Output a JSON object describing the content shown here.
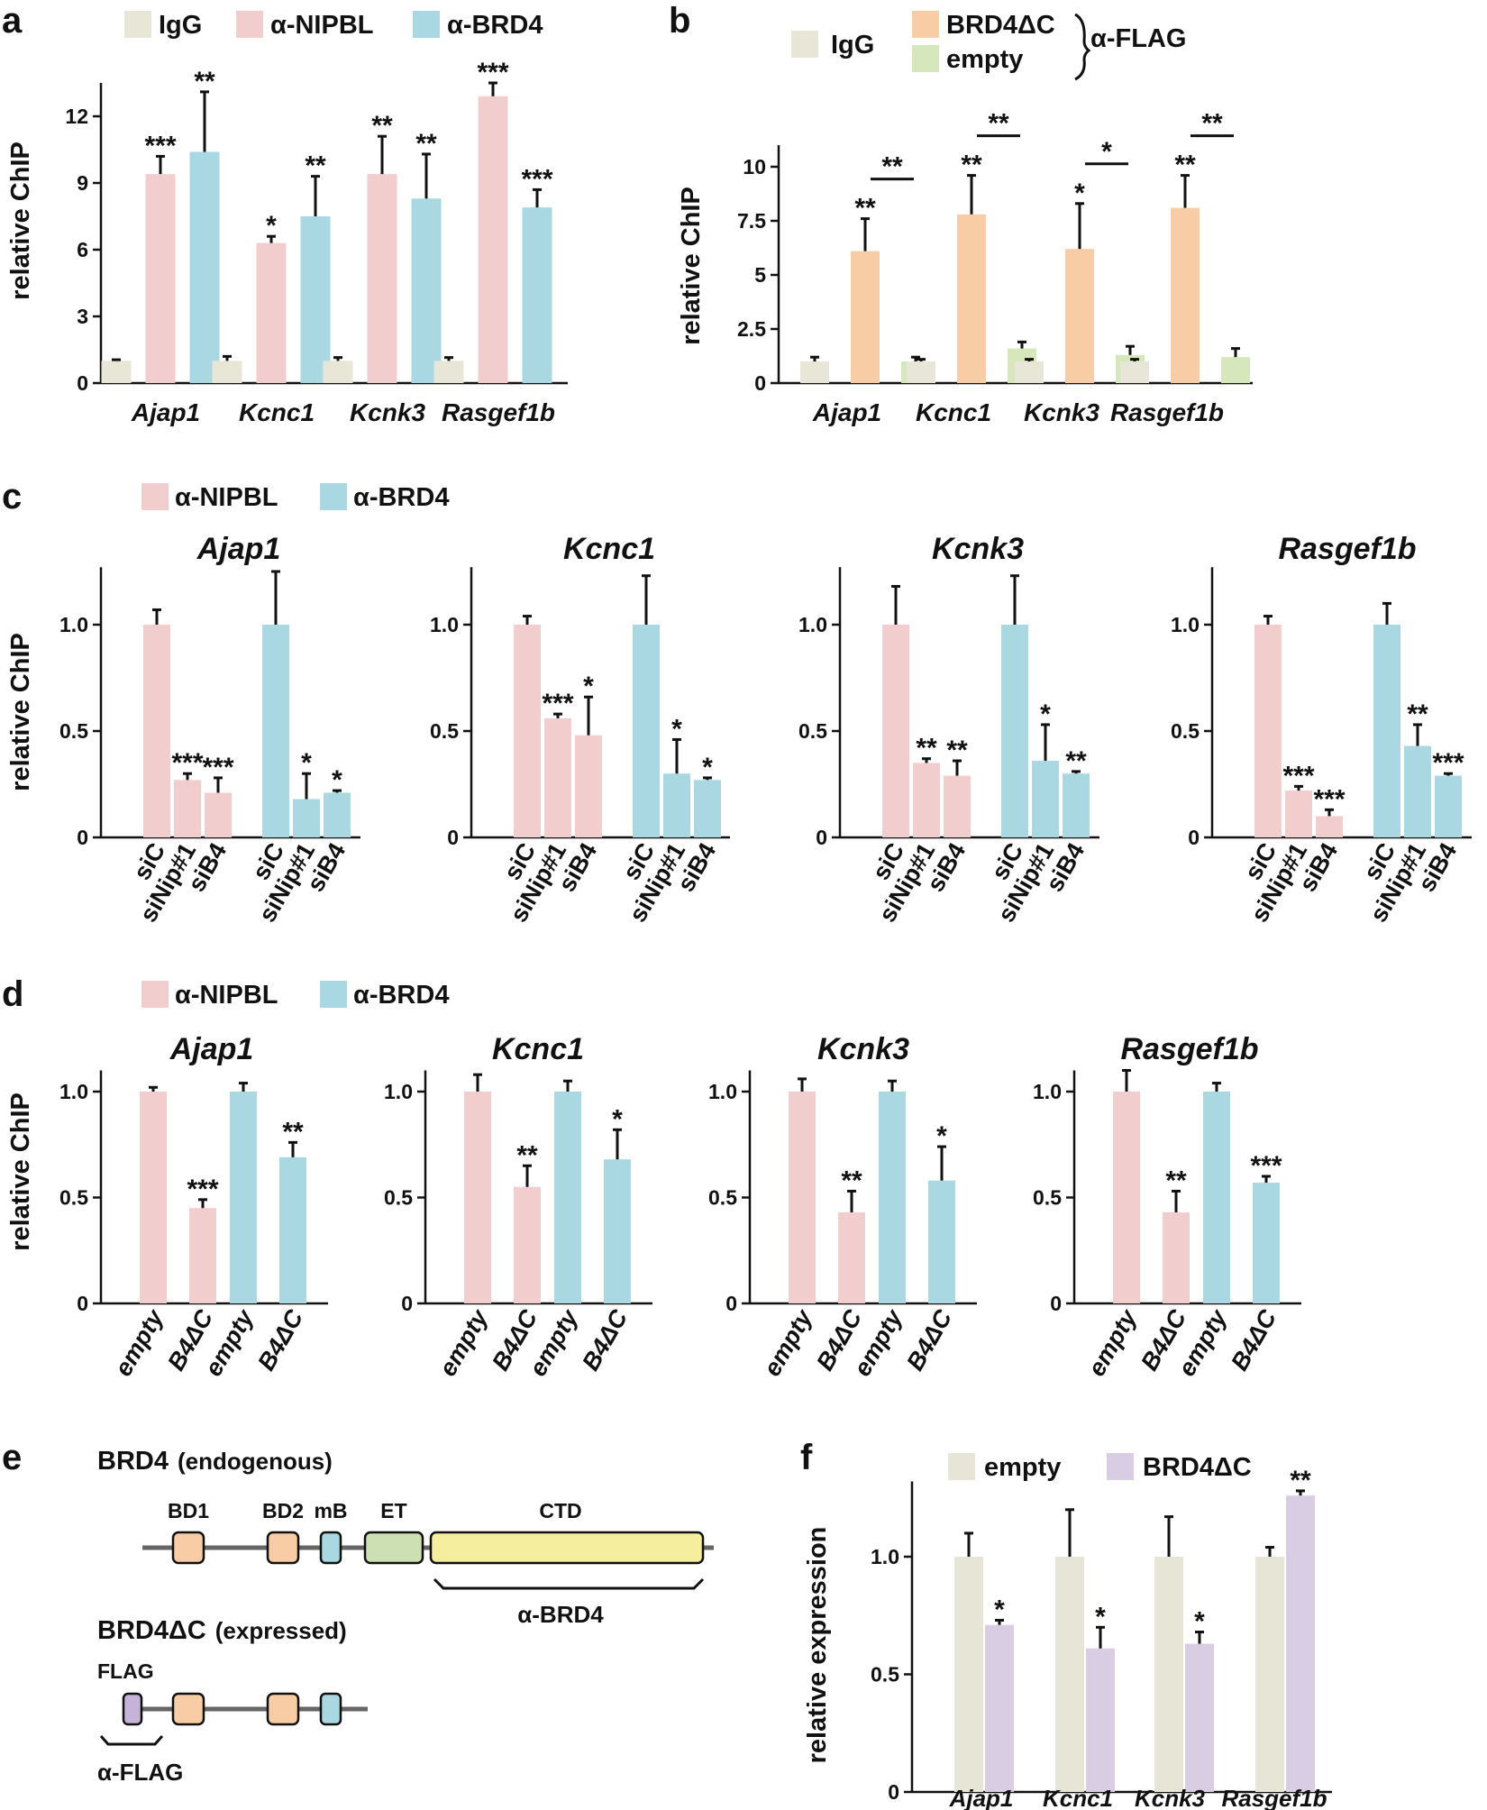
{
  "colors": {
    "igg": "#e8e6d6",
    "nipbl": "#f2cdcd",
    "brd4": "#a9d8e2",
    "brd4dc": "#f8cda6",
    "empty_b": "#d6e7bb",
    "empty_f": "#e7e5d5",
    "brd4dc_f": "#d8cde3",
    "bd": "#f8cda6",
    "mb": "#a9d8e2",
    "et": "#cce0b4",
    "ctd": "#f5ee9e",
    "flag": "#c6b3d8"
  },
  "labels": {
    "a": "a",
    "b": "b",
    "c": "c",
    "d": "d",
    "e": "e",
    "f": "f",
    "alpha_flag": "α-FLAG"
  },
  "chart_data": [
    {
      "id": "a",
      "type": "bar",
      "categories": [
        "Ajap1",
        "Kcnc1",
        "Kcnk3",
        "Rasgef1b"
      ],
      "ylabel": "relative ChIP",
      "ylim": [
        0,
        13.5
      ],
      "yticks": [
        "0",
        "3",
        "6",
        "9",
        "12"
      ],
      "legend": [
        "IgG",
        "α-NIPBL",
        "α-BRD4"
      ],
      "series": [
        {
          "name": "IgG",
          "values": [
            1.0,
            1.0,
            1.0,
            1.0
          ],
          "err": [
            0.05,
            0.2,
            0.15,
            0.15
          ],
          "stars": [
            "",
            "",
            "",
            ""
          ]
        },
        {
          "name": "α-NIPBL",
          "values": [
            9.4,
            6.3,
            9.4,
            12.9
          ],
          "err": [
            0.8,
            0.3,
            1.7,
            0.6
          ],
          "stars": [
            "***",
            "*",
            "**",
            "***"
          ]
        },
        {
          "name": "α-BRD4",
          "values": [
            10.4,
            7.5,
            8.3,
            7.9
          ],
          "err": [
            2.7,
            1.8,
            2.0,
            0.8
          ],
          "stars": [
            "**",
            "**",
            "**",
            "***"
          ]
        }
      ]
    },
    {
      "id": "b",
      "type": "bar",
      "categories": [
        "Ajap1",
        "Kcnc1",
        "Kcnk3",
        "Rasgef1b"
      ],
      "ylabel": "relative ChIP",
      "ylim": [
        0,
        11
      ],
      "yticks": [
        "0",
        "2.5",
        "5",
        "7.5",
        "10"
      ],
      "legend": [
        "IgG",
        "BRD4ΔC",
        "empty"
      ],
      "series": [
        {
          "name": "IgG",
          "values": [
            1.0,
            1.0,
            1.0,
            1.0
          ],
          "err": [
            0.2,
            0.1,
            0.1,
            0.1
          ],
          "stars": [
            "",
            "",
            "",
            ""
          ]
        },
        {
          "name": "BRD4ΔC",
          "values": [
            6.1,
            7.8,
            6.2,
            8.1
          ],
          "err": [
            1.5,
            1.8,
            2.1,
            1.5
          ],
          "stars": [
            "**",
            "**",
            "*",
            "**"
          ]
        },
        {
          "name": "empty",
          "values": [
            1.0,
            1.6,
            1.3,
            1.2
          ],
          "err": [
            0.2,
            0.3,
            0.4,
            0.4
          ],
          "stars": [
            "",
            "",
            "",
            ""
          ]
        }
      ],
      "bracket_stars": [
        "**",
        "**",
        "*",
        "**"
      ]
    },
    {
      "id": "c",
      "type": "bar",
      "ylabel": "relative ChIP",
      "ylim": [
        0,
        1.27
      ],
      "yticks": [
        "0",
        "0.5",
        "1.0"
      ],
      "legend": [
        "α-NIPBL",
        "α-BRD4"
      ],
      "categories": [
        "siC",
        "siNip#1",
        "siB4",
        "siC",
        "siNip#1",
        "siB4"
      ],
      "panels": [
        {
          "title": "Ajap1",
          "values": [
            1.0,
            0.27,
            0.21,
            1.0,
            0.18,
            0.21
          ],
          "err": [
            0.07,
            0.03,
            0.07,
            0.25,
            0.12,
            0.01
          ],
          "stars": [
            "",
            "***",
            "***",
            "",
            "*",
            "*"
          ]
        },
        {
          "title": "Kcnc1",
          "values": [
            1.0,
            0.56,
            0.48,
            1.0,
            0.3,
            0.27
          ],
          "err": [
            0.04,
            0.02,
            0.18,
            0.23,
            0.16,
            0.01
          ],
          "stars": [
            "",
            "***",
            "*",
            "",
            "*",
            "*"
          ]
        },
        {
          "title": "Kcnk3",
          "values": [
            1.0,
            0.35,
            0.29,
            1.0,
            0.36,
            0.3
          ],
          "err": [
            0.18,
            0.02,
            0.07,
            0.23,
            0.17,
            0.01
          ],
          "stars": [
            "",
            "**",
            "**",
            "",
            "*",
            "**"
          ]
        },
        {
          "title": "Rasgef1b",
          "values": [
            1.0,
            0.22,
            0.1,
            1.0,
            0.43,
            0.29
          ],
          "err": [
            0.04,
            0.02,
            0.03,
            0.1,
            0.1,
            0.01
          ],
          "stars": [
            "",
            "***",
            "***",
            "",
            "**",
            "***"
          ]
        }
      ]
    },
    {
      "id": "d",
      "type": "bar",
      "ylabel": "relative ChIP",
      "ylim": [
        0,
        1.1
      ],
      "yticks": [
        "0",
        "0.5",
        "1.0"
      ],
      "legend": [
        "α-NIPBL",
        "α-BRD4"
      ],
      "categories": [
        "empty",
        "B4ΔC",
        "empty",
        "B4ΔC"
      ],
      "panels": [
        {
          "title": "Ajap1",
          "values": [
            1.0,
            0.45,
            1.0,
            0.69
          ],
          "err": [
            0.02,
            0.04,
            0.04,
            0.07
          ],
          "stars": [
            "",
            "***",
            "",
            "**"
          ]
        },
        {
          "title": "Kcnc1",
          "values": [
            1.0,
            0.55,
            1.0,
            0.68
          ],
          "err": [
            0.08,
            0.1,
            0.05,
            0.14
          ],
          "stars": [
            "",
            "**",
            "",
            "*"
          ]
        },
        {
          "title": "Kcnk3",
          "values": [
            1.0,
            0.43,
            1.0,
            0.58
          ],
          "err": [
            0.06,
            0.1,
            0.05,
            0.16
          ],
          "stars": [
            "",
            "**",
            "",
            "*"
          ]
        },
        {
          "title": "Rasgef1b",
          "values": [
            1.0,
            0.43,
            1.0,
            0.57
          ],
          "err": [
            0.1,
            0.1,
            0.04,
            0.03
          ],
          "stars": [
            "",
            "**",
            "",
            "***"
          ]
        }
      ]
    },
    {
      "id": "f",
      "type": "bar",
      "categories": [
        "Ajap1",
        "Kcnc1",
        "Kcnk3",
        "Rasgef1b"
      ],
      "ylabel": "relative expression",
      "ylim": [
        0,
        1.32
      ],
      "yticks": [
        "0",
        "0.5",
        "1.0"
      ],
      "legend": [
        "empty",
        "BRD4ΔC"
      ],
      "series": [
        {
          "name": "empty",
          "values": [
            1.0,
            1.0,
            1.0,
            1.0
          ],
          "err": [
            0.1,
            0.2,
            0.17,
            0.04
          ],
          "stars": [
            "",
            "",
            "",
            ""
          ]
        },
        {
          "name": "BRD4ΔC",
          "values": [
            0.71,
            0.61,
            0.63,
            1.26
          ],
          "err": [
            0.02,
            0.09,
            0.05,
            0.02
          ],
          "stars": [
            "*",
            "*",
            "*",
            "**"
          ]
        }
      ]
    }
  ],
  "diagram_e": {
    "endo_title": "BRD4",
    "endo_sub": "(endogenous)",
    "expr_title": "BRD4ΔC",
    "expr_sub": "(expressed)",
    "domains": [
      "BD1",
      "BD2",
      "mB",
      "ET",
      "CTD"
    ],
    "flag_label": "FLAG",
    "anti_brd4": "α-BRD4",
    "anti_flag": "α-FLAG"
  }
}
